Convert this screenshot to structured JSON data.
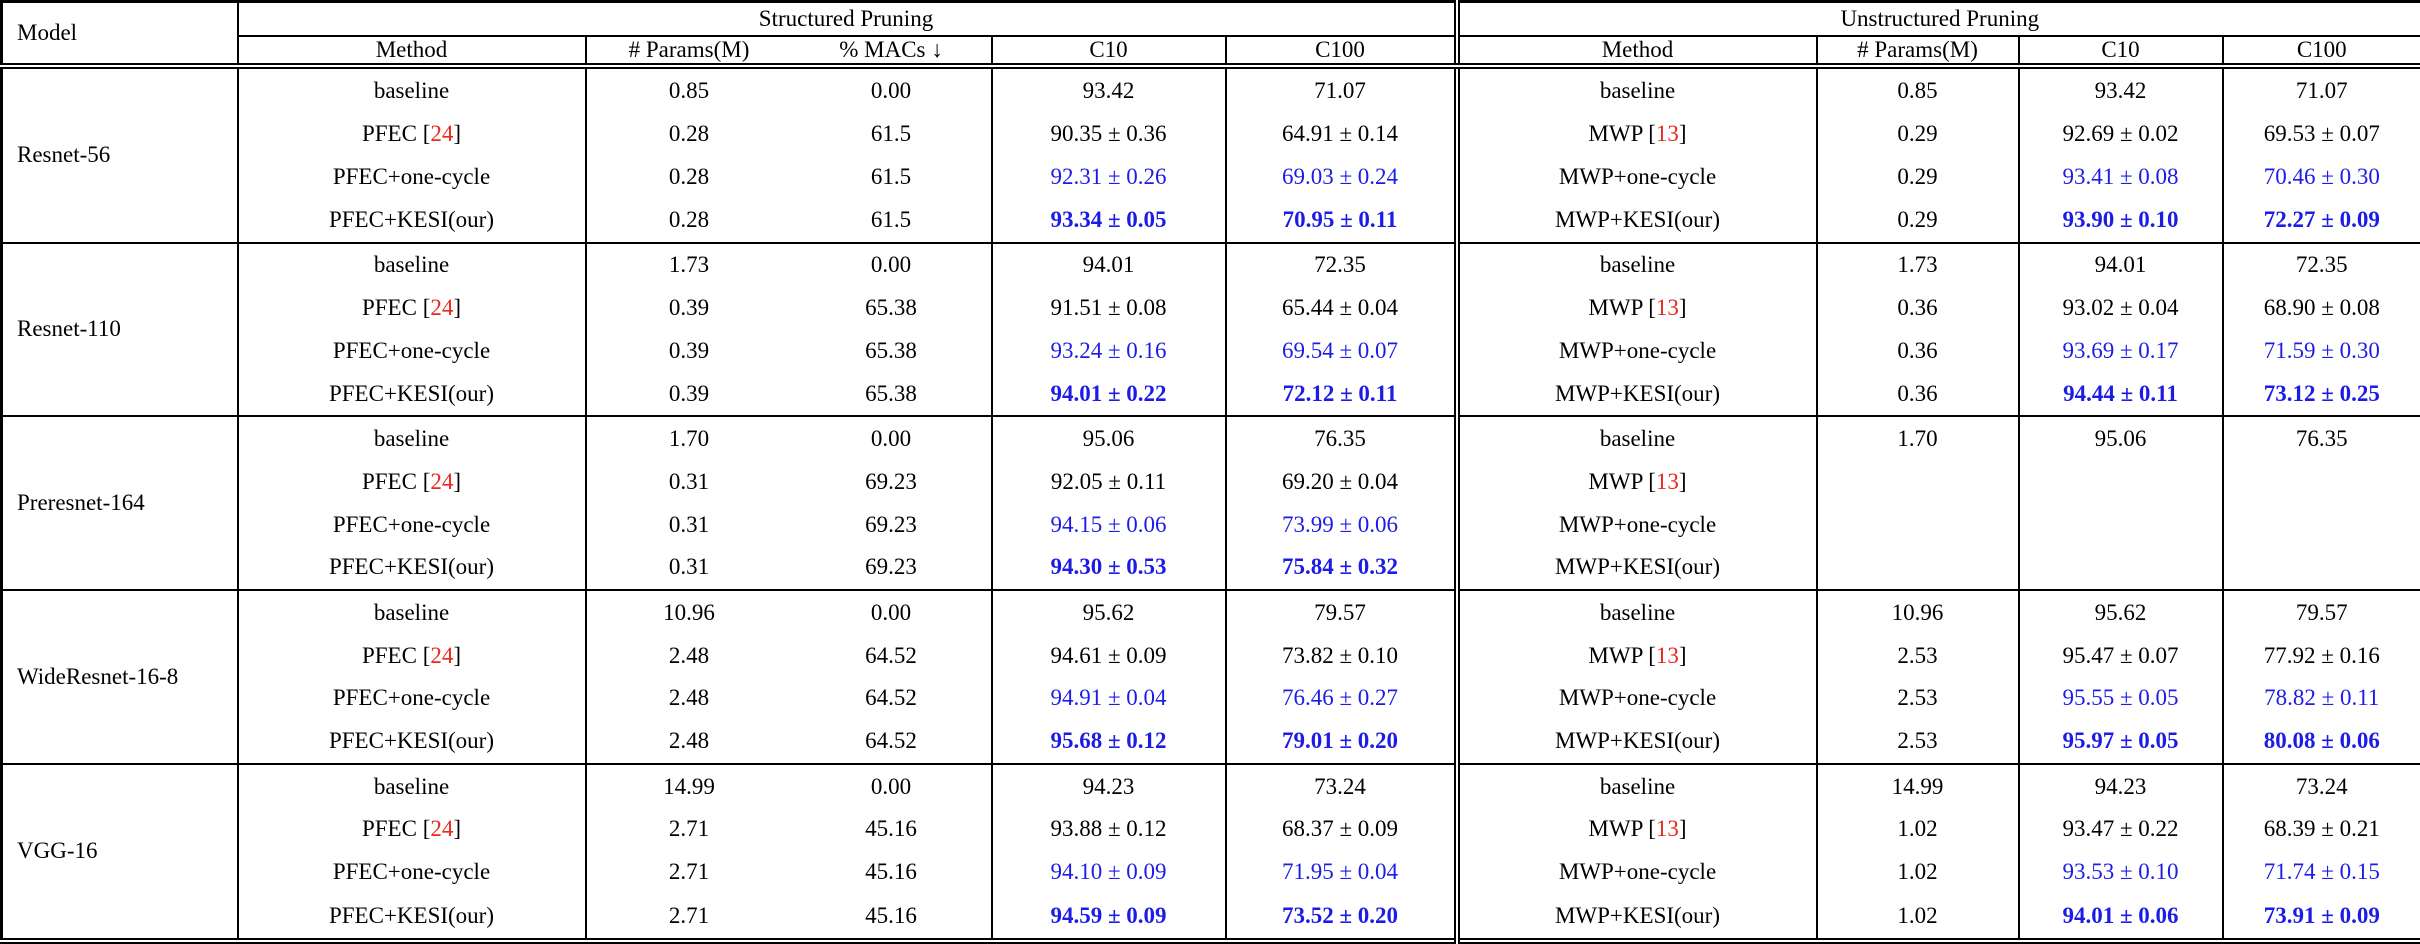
{
  "header": {
    "model": "Model",
    "structured": {
      "title": "Structured Pruning",
      "columns": [
        "Method",
        "# Params(M)",
        "% MACs ↓",
        "C10",
        "C100"
      ]
    },
    "unstructured": {
      "title": "Unstructured Pruning",
      "columns": [
        "Method",
        "# Params(M)",
        "C10",
        "C100"
      ]
    }
  },
  "colors": {
    "value_blue": "#1c1ce6",
    "citation_red": "#eb281e"
  },
  "legend": {
    "plus_minus": "±"
  },
  "groups": [
    {
      "model": "Resnet-56",
      "rows": [
        {
          "style": "plain",
          "s_method": {
            "text": "baseline"
          },
          "s_params": "0.85",
          "s_macs": "0.00",
          "s_c10": "93.42",
          "s_c100": "71.07",
          "u_method": {
            "text": "baseline"
          },
          "u_params": "0.85",
          "u_c10": "93.42",
          "u_c100": "71.07"
        },
        {
          "style": "plain",
          "s_method": {
            "text": "PFEC",
            "cite": "24"
          },
          "s_params": "0.28",
          "s_macs": "61.5",
          "s_c10": "90.35 ± 0.36",
          "s_c100": "64.91 ± 0.14",
          "u_method": {
            "text": "MWP",
            "cite": "13"
          },
          "u_params": "0.29",
          "u_c10": "92.69 ± 0.02",
          "u_c100": "69.53 ± 0.07"
        },
        {
          "style": "blue",
          "s_method": {
            "text": "PFEC+one-cycle"
          },
          "s_params": "0.28",
          "s_macs": "61.5",
          "s_c10": "92.31 ± 0.26",
          "s_c100": "69.03 ± 0.24",
          "u_method": {
            "text": "MWP+one-cycle"
          },
          "u_params": "0.29",
          "u_c10": "93.41 ± 0.08",
          "u_c100": "70.46 ± 0.30"
        },
        {
          "style": "blue-bold",
          "s_method": {
            "text": "PFEC+KESI(our)"
          },
          "s_params": "0.28",
          "s_macs": "61.5",
          "s_c10": "93.34 ± 0.05",
          "s_c100": "70.95 ± 0.11",
          "u_method": {
            "text": "MWP+KESI(our)"
          },
          "u_params": "0.29",
          "u_c10": "93.90 ± 0.10",
          "u_c100": "72.27 ± 0.09"
        }
      ]
    },
    {
      "model": "Resnet-110",
      "rows": [
        {
          "style": "plain",
          "s_method": {
            "text": "baseline"
          },
          "s_params": "1.73",
          "s_macs": "0.00",
          "s_c10": "94.01",
          "s_c100": "72.35",
          "u_method": {
            "text": "baseline"
          },
          "u_params": "1.73",
          "u_c10": "94.01",
          "u_c100": "72.35"
        },
        {
          "style": "plain",
          "s_method": {
            "text": "PFEC",
            "cite": "24"
          },
          "s_params": "0.39",
          "s_macs": "65.38",
          "s_c10": "91.51 ± 0.08",
          "s_c100": "65.44 ± 0.04",
          "u_method": {
            "text": "MWP",
            "cite": "13"
          },
          "u_params": "0.36",
          "u_c10": "93.02 ± 0.04",
          "u_c100": "68.90 ± 0.08"
        },
        {
          "style": "blue",
          "s_method": {
            "text": "PFEC+one-cycle"
          },
          "s_params": "0.39",
          "s_macs": "65.38",
          "s_c10": "93.24 ± 0.16",
          "s_c100": "69.54 ± 0.07",
          "u_method": {
            "text": "MWP+one-cycle"
          },
          "u_params": "0.36",
          "u_c10": "93.69 ± 0.17",
          "u_c100": "71.59 ± 0.30"
        },
        {
          "style": "blue-bold",
          "s_method": {
            "text": "PFEC+KESI(our)"
          },
          "s_params": "0.39",
          "s_macs": "65.38",
          "s_c10": "94.01 ± 0.22",
          "s_c100": "72.12 ± 0.11",
          "u_method": {
            "text": "MWP+KESI(our)"
          },
          "u_params": "0.36",
          "u_c10": "94.44 ± 0.11",
          "u_c100": "73.12 ± 0.25"
        }
      ]
    },
    {
      "model": "Preresnet-164",
      "rows": [
        {
          "style": "plain",
          "s_method": {
            "text": "baseline"
          },
          "s_params": "1.70",
          "s_macs": "0.00",
          "s_c10": "95.06",
          "s_c100": "76.35",
          "u_method": {
            "text": "baseline"
          },
          "u_params": "1.70",
          "u_c10": "95.06",
          "u_c100": "76.35"
        },
        {
          "style": "plain",
          "s_method": {
            "text": "PFEC",
            "cite": "24"
          },
          "s_params": "0.31",
          "s_macs": "69.23",
          "s_c10": "92.05 ± 0.11",
          "s_c100": "69.20 ± 0.04",
          "u_method": {
            "text": "MWP",
            "cite": "13"
          },
          "u_params": "",
          "u_c10": "",
          "u_c100": ""
        },
        {
          "style": "blue",
          "s_method": {
            "text": "PFEC+one-cycle"
          },
          "s_params": "0.31",
          "s_macs": "69.23",
          "s_c10": "94.15 ± 0.06",
          "s_c100": "73.99 ± 0.06",
          "u_method": {
            "text": "MWP+one-cycle"
          },
          "u_params": "",
          "u_c10": "",
          "u_c100": ""
        },
        {
          "style": "blue-bold",
          "s_method": {
            "text": "PFEC+KESI(our)"
          },
          "s_params": "0.31",
          "s_macs": "69.23",
          "s_c10": "94.30 ± 0.53",
          "s_c100": "75.84 ± 0.32",
          "u_method": {
            "text": "MWP+KESI(our)"
          },
          "u_params": "",
          "u_c10": "",
          "u_c100": ""
        }
      ]
    },
    {
      "model": "WideResnet-16-8",
      "rows": [
        {
          "style": "plain",
          "s_method": {
            "text": "baseline"
          },
          "s_params": "10.96",
          "s_macs": "0.00",
          "s_c10": "95.62",
          "s_c100": "79.57",
          "u_method": {
            "text": "baseline"
          },
          "u_params": "10.96",
          "u_c10": "95.62",
          "u_c100": "79.57"
        },
        {
          "style": "plain",
          "s_method": {
            "text": "PFEC",
            "cite": "24"
          },
          "s_params": "2.48",
          "s_macs": "64.52",
          "s_c10": "94.61 ± 0.09",
          "s_c100": "73.82 ± 0.10",
          "u_method": {
            "text": "MWP",
            "cite": "13"
          },
          "u_params": "2.53",
          "u_c10": "95.47 ± 0.07",
          "u_c100": "77.92 ± 0.16"
        },
        {
          "style": "blue",
          "s_method": {
            "text": "PFEC+one-cycle"
          },
          "s_params": "2.48",
          "s_macs": "64.52",
          "s_c10": "94.91 ± 0.04",
          "s_c100": "76.46 ± 0.27",
          "u_method": {
            "text": "MWP+one-cycle"
          },
          "u_params": "2.53",
          "u_c10": "95.55 ± 0.05",
          "u_c100": "78.82 ± 0.11"
        },
        {
          "style": "blue-bold",
          "s_method": {
            "text": "PFEC+KESI(our)"
          },
          "s_params": "2.48",
          "s_macs": "64.52",
          "s_c10": "95.68 ± 0.12",
          "s_c100": "79.01 ± 0.20",
          "u_method": {
            "text": "MWP+KESI(our)"
          },
          "u_params": "2.53",
          "u_c10": "95.97 ± 0.05",
          "u_c100": "80.08 ± 0.06"
        }
      ]
    },
    {
      "model": "VGG-16",
      "rows": [
        {
          "style": "plain",
          "s_method": {
            "text": "baseline"
          },
          "s_params": "14.99",
          "s_macs": "0.00",
          "s_c10": "94.23",
          "s_c100": "73.24",
          "u_method": {
            "text": "baseline"
          },
          "u_params": "14.99",
          "u_c10": "94.23",
          "u_c100": "73.24"
        },
        {
          "style": "plain",
          "s_method": {
            "text": "PFEC",
            "cite": "24"
          },
          "s_params": "2.71",
          "s_macs": "45.16",
          "s_c10": "93.88 ± 0.12",
          "s_c100": "68.37 ± 0.09",
          "u_method": {
            "text": "MWP",
            "cite": "13"
          },
          "u_params": "1.02",
          "u_c10": "93.47 ± 0.22",
          "u_c100": "68.39 ± 0.21"
        },
        {
          "style": "blue",
          "s_method": {
            "text": "PFEC+one-cycle"
          },
          "s_params": "2.71",
          "s_macs": "45.16",
          "s_c10": "94.10 ± 0.09",
          "s_c100": "71.95 ± 0.04",
          "u_method": {
            "text": "MWP+one-cycle"
          },
          "u_params": "1.02",
          "u_c10": "93.53 ± 0.10",
          "u_c100": "71.74 ± 0.15"
        },
        {
          "style": "blue-bold",
          "s_method": {
            "text": "PFEC+KESI(our)"
          },
          "s_params": "2.71",
          "s_macs": "45.16",
          "s_c10": "94.59 ± 0.09",
          "s_c100": "73.52 ± 0.20",
          "u_method": {
            "text": "MWP+KESI(our)"
          },
          "u_params": "1.02",
          "u_c10": "94.01 ± 0.06",
          "u_c100": "73.91 ± 0.09"
        }
      ]
    }
  ]
}
